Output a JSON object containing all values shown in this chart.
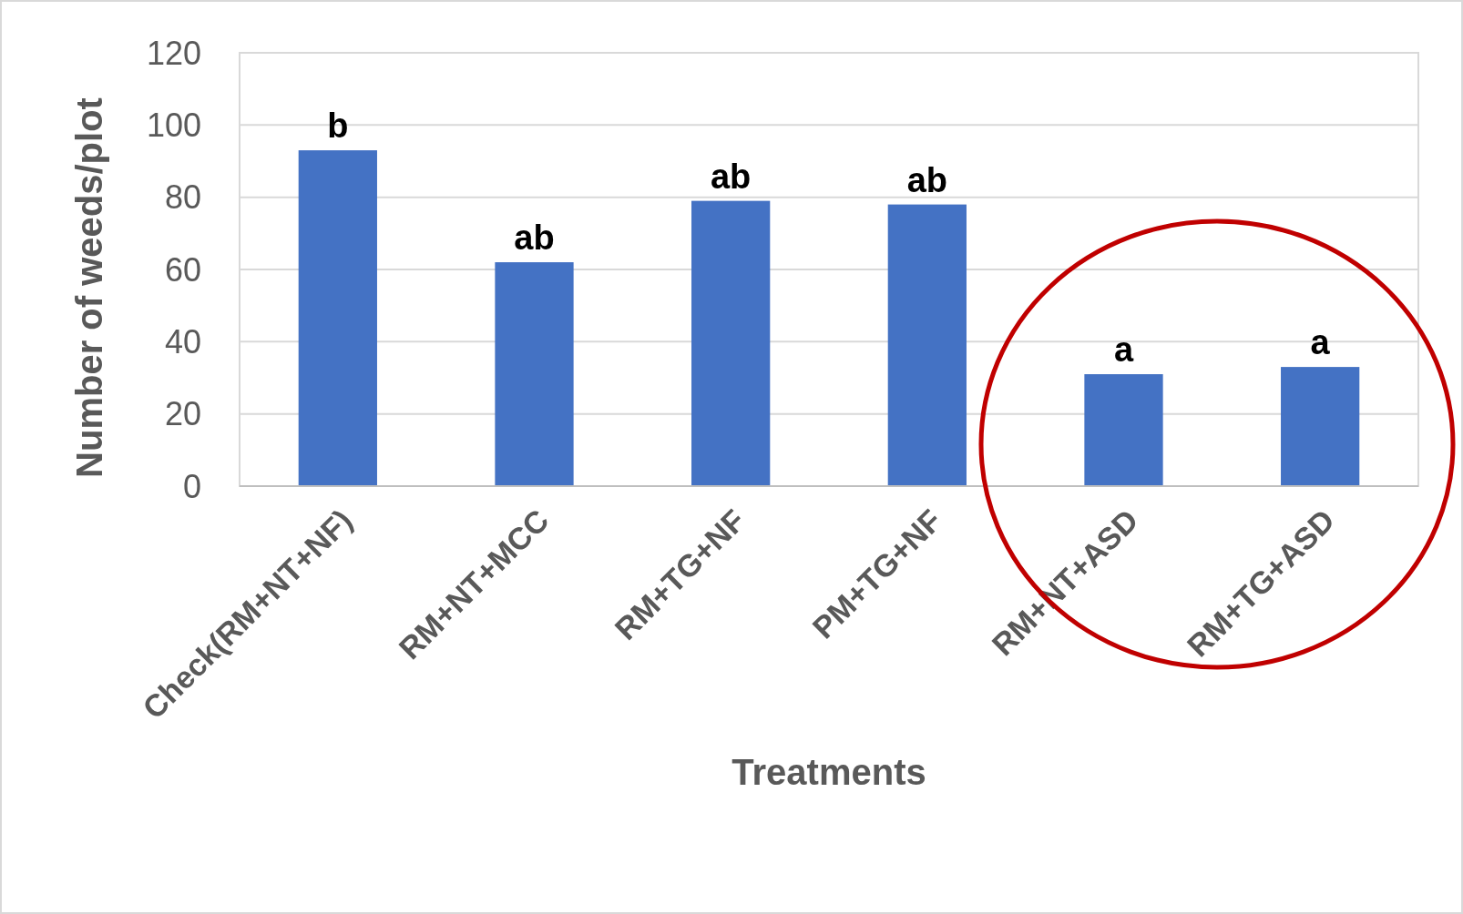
{
  "chart_data": {
    "type": "bar",
    "xlabel": "Treatments",
    "ylabel": "Number of weeds/plot",
    "categories": [
      "Check(RM+NT+NF)",
      "RM+NT+MCC",
      "RM+TG+NF",
      "PM+TG+NF",
      "RM+NT+ASD",
      "RM+TG+ASD"
    ],
    "values": [
      93,
      62,
      79,
      78,
      31,
      33
    ],
    "color": "#4472c4",
    "ylim": [
      0,
      120
    ],
    "yticks": [
      0,
      20,
      40,
      60,
      80,
      100,
      120
    ],
    "grid": "y",
    "annotations": [
      {
        "text": "b",
        "x": "Check(RM+NT+NF)",
        "y": 93
      },
      {
        "text": "ab",
        "x": "RM+NT+MCC",
        "y": 62
      },
      {
        "text": "ab",
        "x": "RM+TG+NF",
        "y": 79
      },
      {
        "text": "ab",
        "x": "PM+TG+NF",
        "y": 78
      },
      {
        "text": "a",
        "x": "RM+NT+ASD",
        "y": 31
      },
      {
        "text": "a",
        "x": "RM+TG+ASD",
        "y": 33
      }
    ]
  }
}
